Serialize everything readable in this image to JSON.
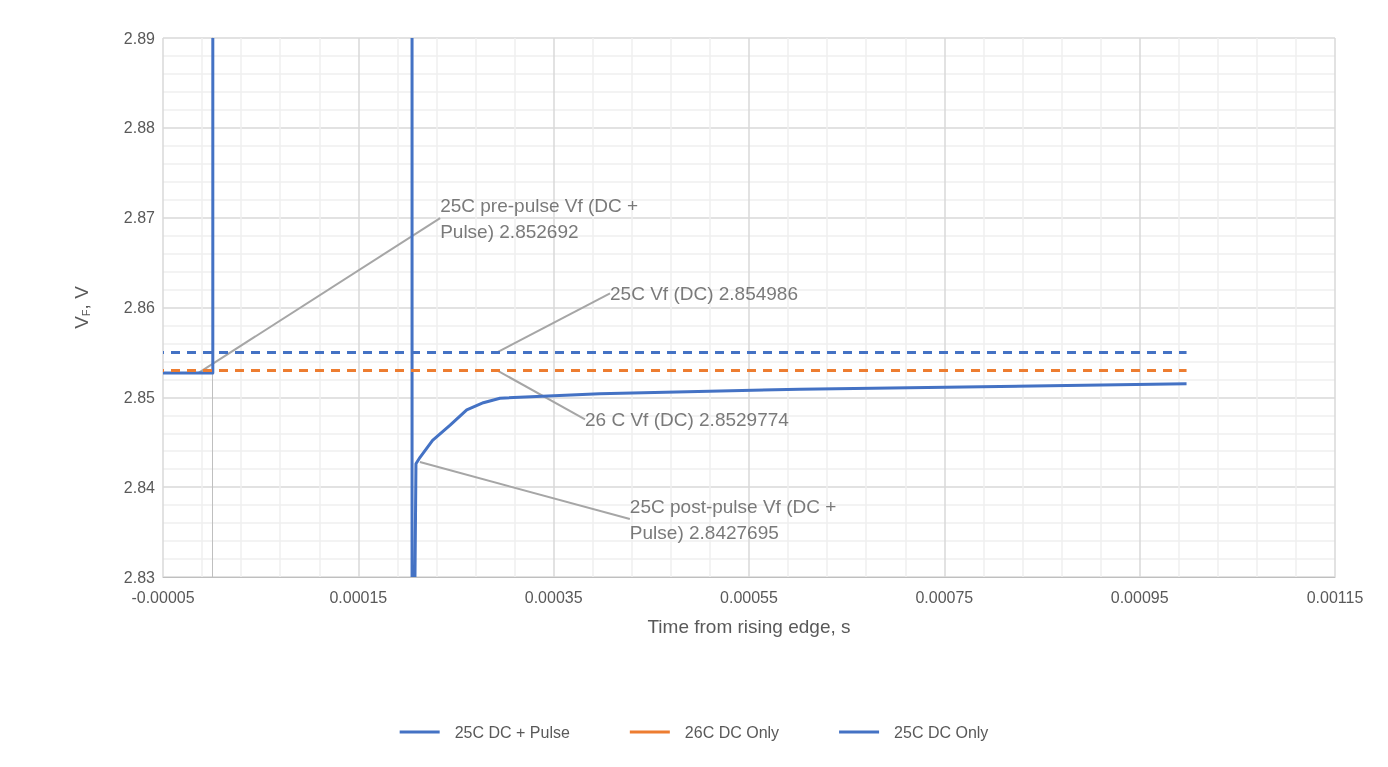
{
  "chart_data": {
    "type": "line",
    "xlabel": "Time from rising edge, s",
    "ylabel": "V$_{F}$, V",
    "xlim": [
      -5e-05,
      0.00115
    ],
    "xticks": [
      {
        "value": -5e-05,
        "label": "-0.00005"
      },
      0.00015,
      0.00035,
      0.00055,
      0.00075,
      0.00095,
      0.00115
    ],
    "ylim": [
      2.83,
      2.89
    ],
    "yticks": [
      2.83,
      2.84,
      2.85,
      2.86,
      2.87,
      2.88,
      2.89
    ],
    "grid": true,
    "legend": "bottom",
    "marker": "none",
    "series": [
      {
        "name": "25C DC + Pulse",
        "color": "#4472c4",
        "line_style": "solid",
        "x": [
          -5e-05,
          1e-06,
          1e-06,
          null,
          0.000205,
          0.000205,
          null,
          0.000208,
          0.000209,
          0.000213,
          0.000226,
          0.000244,
          0.000261,
          0.000278,
          0.000295,
          0.000397,
          0.000602,
          0.000807,
          0.000998
        ],
        "values": [
          2.8527,
          2.8527,
          2.89,
          null,
          2.89,
          2.83,
          null,
          2.83,
          2.8426,
          2.8433,
          2.8452,
          2.8469,
          2.8486,
          2.8494,
          2.8499,
          2.8504,
          2.8509,
          2.8512,
          2.8515
        ]
      },
      {
        "name": "26C DC Only",
        "color": "#ed7d31",
        "line_style": "dashed",
        "x": [
          -5e-05,
          0.000998
        ],
        "values": [
          2.853,
          2.853
        ]
      },
      {
        "name": "25C DC Only",
        "color": "#4472c4",
        "line_style": "dashed",
        "x": [
          -5e-05,
          0.000998
        ],
        "values": [
          2.855,
          2.855
        ]
      }
    ],
    "annotations": [
      {
        "text": "25C pre-pulse Vf (DC + Pulse) 2.852692",
        "x": -1.4e-05,
        "y": 2.8527
      },
      {
        "text": "25C Vf (DC) 2.854986",
        "x": 0.000292,
        "y": 2.855
      },
      {
        "text": "26 C Vf (DC) 2.8529774",
        "x": 0.000292,
        "y": 2.853
      },
      {
        "text": "25C post-pulse Vf (DC + Pulse) 2.8427695",
        "x": 0.000213,
        "y": 2.8428
      }
    ]
  }
}
